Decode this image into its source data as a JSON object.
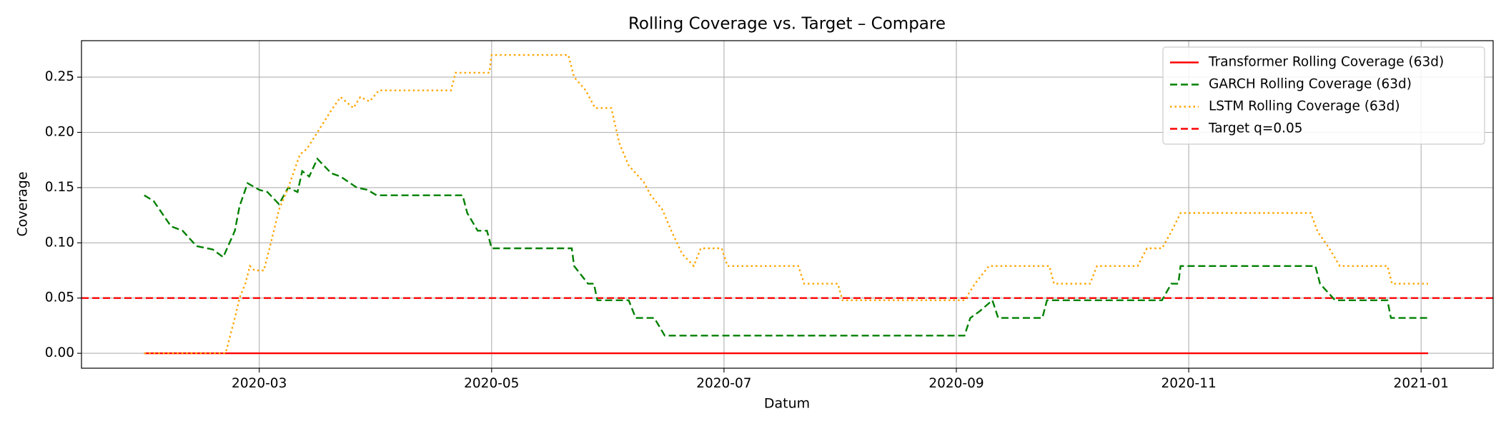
{
  "chart_data": {
    "type": "line",
    "title": "Rolling Coverage vs. Target – Compare",
    "xlabel": "Datum",
    "ylabel": "Coverage",
    "xlim": [
      0.47,
      12.62
    ],
    "ylim": [
      -0.0135,
      0.283
    ],
    "xticks": [
      {
        "value": 2,
        "label": "2020-03"
      },
      {
        "value": 4,
        "label": "2020-05"
      },
      {
        "value": 6,
        "label": "2020-07"
      },
      {
        "value": 8,
        "label": "2020-09"
      },
      {
        "value": 10,
        "label": "2020-11"
      },
      {
        "value": 12,
        "label": "2021-01"
      }
    ],
    "yticks": [
      {
        "value": 0,
        "label": "0.00"
      },
      0.05,
      {
        "value": 0.1,
        "label": "0.10"
      },
      0.15,
      {
        "value": 0.2,
        "label": "0.20"
      },
      0.25
    ],
    "grid": true,
    "legend": "upper right",
    "series": [
      {
        "name": "Transformer Rolling Coverage (63d)",
        "color": "#ff0000",
        "linestyle": "solid",
        "x": [
          1.01,
          12.06
        ],
        "values": [
          0,
          0
        ]
      },
      {
        "name": "GARCH Rolling Coverage (63d)",
        "color": "#008000",
        "linestyle": "dashed",
        "x": [
          1.01,
          1.09,
          1.24,
          1.34,
          1.46,
          1.6,
          1.69,
          1.79,
          1.83,
          1.9,
          2.0,
          2.07,
          2.17,
          2.25,
          2.33,
          2.37,
          2.43,
          2.5,
          2.62,
          2.7,
          2.84,
          2.93,
          3.01,
          3.75,
          3.79,
          3.88,
          3.96,
          4.0,
          4.69,
          4.71,
          4.83,
          4.88,
          4.91,
          5.18,
          5.24,
          5.4,
          5.49,
          8.07,
          8.12,
          8.2,
          8.31,
          8.36,
          8.74,
          8.78,
          9.77,
          9.85,
          9.91,
          9.93,
          11.09,
          11.13,
          11.26,
          11.71,
          11.74,
          12.06
        ],
        "values": [
          0.143,
          0.138,
          0.115,
          0.111,
          0.097,
          0.094,
          0.087,
          0.111,
          0.133,
          0.154,
          0.148,
          0.146,
          0.135,
          0.15,
          0.146,
          0.165,
          0.16,
          0.176,
          0.163,
          0.16,
          0.15,
          0.148,
          0.143,
          0.143,
          0.127,
          0.111,
          0.111,
          0.095,
          0.095,
          0.079,
          0.063,
          0.063,
          0.048,
          0.048,
          0.032,
          0.032,
          0.016,
          0.016,
          0.032,
          0.038,
          0.048,
          0.032,
          0.032,
          0.048,
          0.048,
          0.063,
          0.063,
          0.079,
          0.079,
          0.063,
          0.048,
          0.048,
          0.032,
          0.032
        ]
      },
      {
        "name": "LSTM Rolling Coverage (63d)",
        "color": "#ffa500",
        "linestyle": "dotted",
        "x": [
          1.01,
          1.71,
          1.75,
          1.79,
          1.83,
          1.88,
          1.92,
          1.96,
          2.04,
          2.1,
          2.17,
          2.25,
          2.35,
          2.41,
          2.5,
          2.62,
          2.7,
          2.81,
          2.87,
          2.95,
          3.03,
          3.65,
          3.69,
          3.98,
          4.0,
          4.66,
          4.71,
          4.81,
          4.89,
          5.03,
          5.1,
          5.18,
          5.31,
          5.37,
          5.47,
          5.55,
          5.64,
          5.74,
          5.8,
          5.98,
          6.03,
          6.64,
          6.69,
          6.98,
          7.02,
          8.07,
          8.16,
          8.28,
          8.8,
          8.84,
          9.15,
          9.21,
          9.56,
          9.64,
          9.77,
          9.85,
          9.93,
          11.05,
          11.11,
          11.21,
          11.3,
          11.71,
          11.75,
          12.06
        ],
        "values": [
          0,
          0,
          0.016,
          0.032,
          0.05,
          0.063,
          0.079,
          0.075,
          0.075,
          0.1,
          0.13,
          0.15,
          0.18,
          0.185,
          0.2,
          0.22,
          0.232,
          0.222,
          0.232,
          0.228,
          0.238,
          0.238,
          0.254,
          0.254,
          0.27,
          0.27,
          0.25,
          0.238,
          0.222,
          0.222,
          0.19,
          0.17,
          0.155,
          0.143,
          0.13,
          0.11,
          0.09,
          0.079,
          0.095,
          0.095,
          0.079,
          0.079,
          0.063,
          0.063,
          0.048,
          0.048,
          0.063,
          0.079,
          0.079,
          0.063,
          0.063,
          0.079,
          0.079,
          0.095,
          0.095,
          0.11,
          0.127,
          0.127,
          0.11,
          0.095,
          0.079,
          0.079,
          0.063,
          0.063
        ]
      }
    ],
    "hlines": [
      {
        "value": 0.05,
        "label": "Target q=0.05",
        "color": "#ff0000",
        "linestyle": "dashed"
      }
    ]
  }
}
